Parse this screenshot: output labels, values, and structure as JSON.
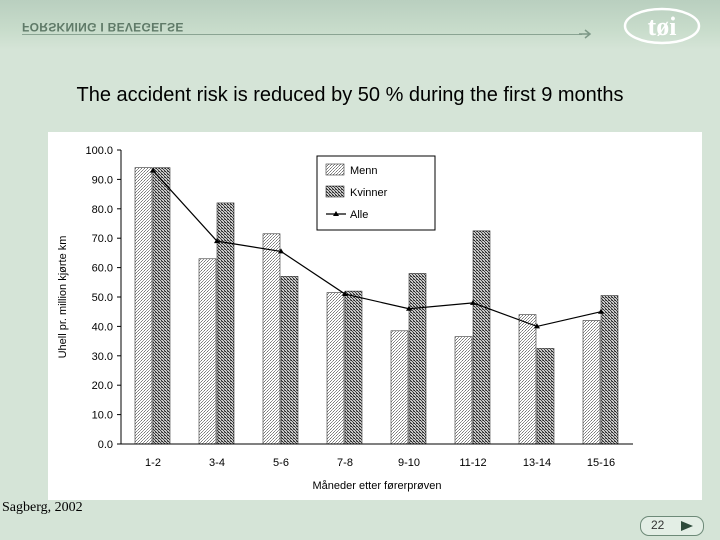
{
  "header": {
    "band_text": "FORSKNING I BEVEGELSE",
    "logo_text": "tøi"
  },
  "slide": {
    "title": "The accident risk is reduced by 50 % during the first 9 months",
    "credit": "Sagberg, 2002",
    "page_number": "22"
  },
  "icons": {
    "next": "next-arrow-icon",
    "header_arrow": "arrow-right-icon"
  },
  "colors": {
    "background": "#d5e4d7",
    "header": "#b9cfbf",
    "bar_menn": "#ffffff",
    "bar_kvinner": "#9a9a9a",
    "line_alle": "#000000"
  },
  "chart_data": {
    "type": "bar",
    "title": "",
    "xlabel": "Måneder etter førerprøven",
    "ylabel": "Uhell pr. million kjørte km",
    "ylim": [
      0,
      100
    ],
    "yticks": [
      "0.0",
      "10.0",
      "20.0",
      "30.0",
      "40.0",
      "50.0",
      "60.0",
      "70.0",
      "80.0",
      "90.0",
      "100.0"
    ],
    "categories": [
      "1-2",
      "3-4",
      "5-6",
      "7-8",
      "9-10",
      "11-12",
      "13-14",
      "15-16"
    ],
    "series": [
      {
        "name": "Menn",
        "type": "bar",
        "values": [
          94,
          63,
          71.5,
          51.5,
          38.5,
          36.5,
          44,
          42
        ]
      },
      {
        "name": "Kvinner",
        "type": "bar",
        "values": [
          94,
          82,
          57,
          52,
          58,
          72.5,
          32.5,
          50.5
        ]
      },
      {
        "name": "Alle",
        "type": "line",
        "values": [
          93,
          69,
          65.5,
          51,
          46,
          48,
          40,
          45
        ]
      }
    ],
    "legend_position": "top-right",
    "grid": false
  }
}
